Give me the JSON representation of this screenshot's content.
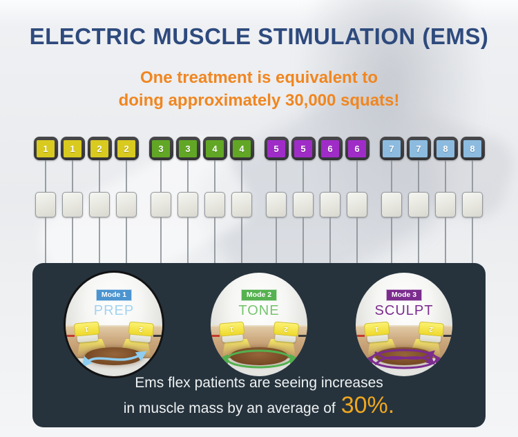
{
  "header": {
    "title": "ELECTRIC MUSCLE STIMULATION (EMS)",
    "title_color": "#2e4a7d",
    "subtitle_line1": "One treatment is equivalent to",
    "subtitle_line2": "doing approximately 30,000 squats!",
    "subtitle_color": "#f08620"
  },
  "channels": {
    "groups": [
      {
        "group_name": "channels-1-2",
        "color": "#d9ca20",
        "connector_labels": [
          "1",
          "1",
          "2",
          "2"
        ]
      },
      {
        "group_name": "channels-3-4",
        "color": "#61a725",
        "connector_labels": [
          "3",
          "3",
          "4",
          "4"
        ]
      },
      {
        "group_name": "channels-5-6",
        "color": "#a02cc8",
        "connector_labels": [
          "5",
          "5",
          "6",
          "6"
        ]
      },
      {
        "group_name": "channels-7-8",
        "color": "#8cbbdf",
        "connector_labels": [
          "7",
          "7",
          "8",
          "8"
        ]
      }
    ]
  },
  "modes_panel": {
    "background": "#26333d",
    "modes": [
      {
        "badge_label": "Mode 1",
        "mode_name": "PREP",
        "badge_color": "#4b94cf",
        "name_color": "#a3d3f0",
        "arrow_color": "#8ecdf0",
        "pad_labels": [
          "1",
          "2"
        ],
        "outlined": true
      },
      {
        "badge_label": "Mode 2",
        "mode_name": "TONE",
        "badge_color": "#56b150",
        "name_color": "#77c470",
        "arrow_color": "#53b04e",
        "pad_labels": [
          "1",
          "2"
        ],
        "outlined": false
      },
      {
        "badge_label": "Mode 3",
        "mode_name": "SCULPT",
        "badge_color": "#7b2c8d",
        "name_color": "#7b2c8d",
        "arrow_color": "#7b2c8d",
        "pad_labels": [
          "1",
          "2"
        ],
        "outlined": false
      }
    ],
    "caption_line1": "Ems flex patients are seeing increases",
    "caption_line2_prefix": "in muscle mass by an average of",
    "caption_highlight": "30%.",
    "caption_highlight_color": "#f0a71f"
  }
}
